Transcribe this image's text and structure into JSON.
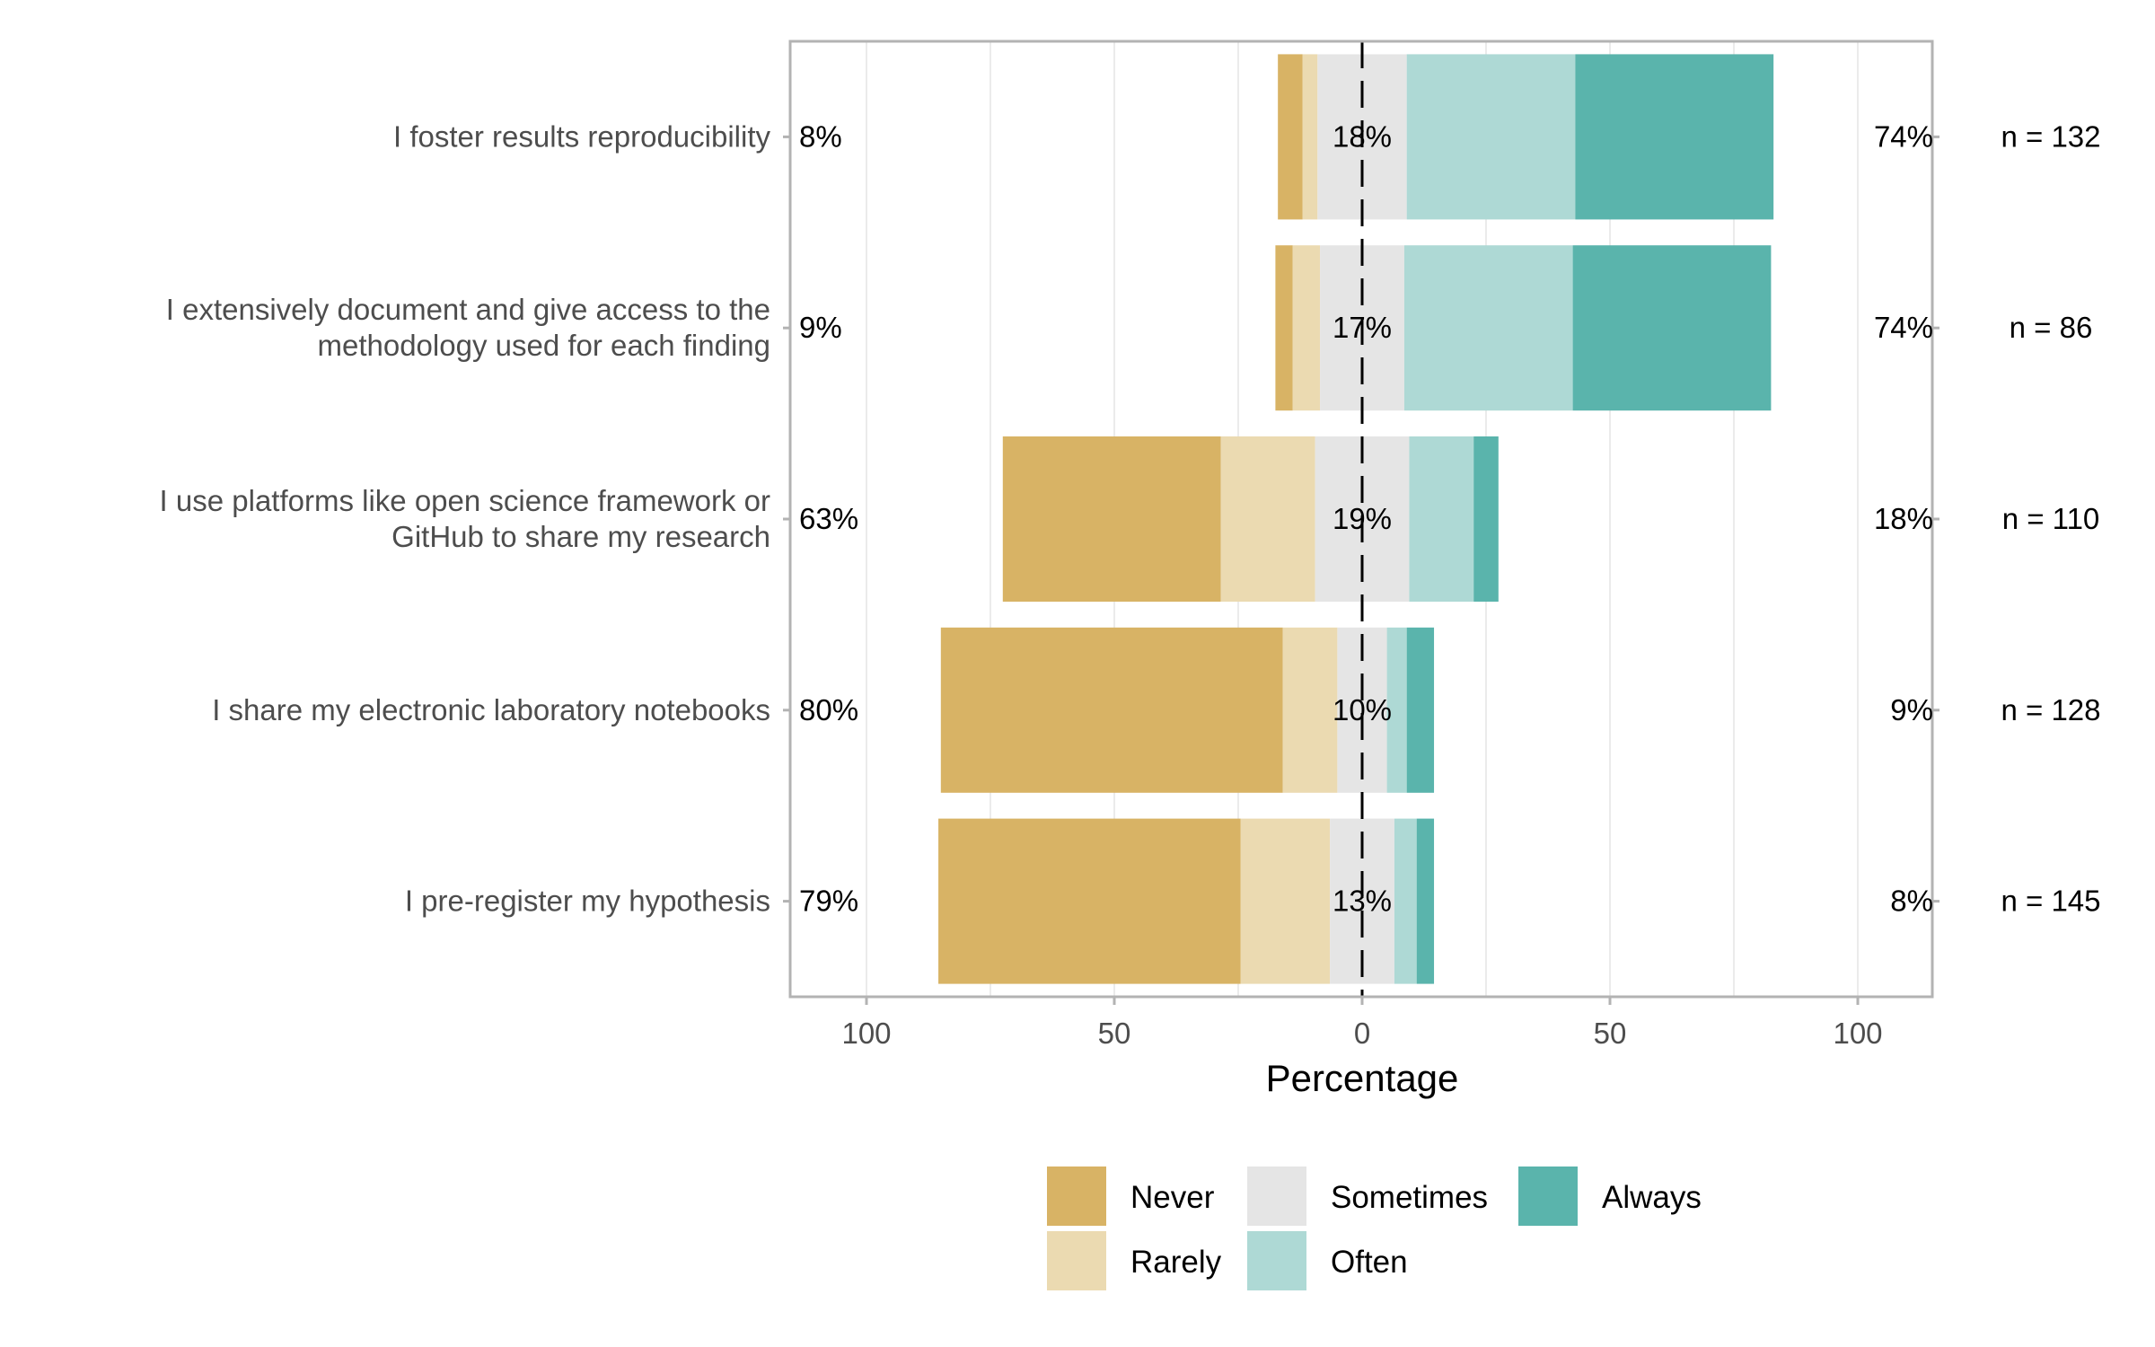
{
  "chart_data": {
    "type": "bar",
    "layout": "diverging-stacked-horizontal",
    "xlabel": "Percentage",
    "xlim": [
      -100,
      100
    ],
    "xticks": [
      {
        "value": -100,
        "label": "100"
      },
      {
        "value": -50,
        "label": "50"
      },
      {
        "value": 0,
        "label": "0"
      },
      {
        "value": 50,
        "label": "50"
      },
      {
        "value": 100,
        "label": "100"
      }
    ],
    "series": [
      {
        "name": "Never",
        "color": "#d8b365"
      },
      {
        "name": "Rarely",
        "color": "#ebdab1"
      },
      {
        "name": "Sometimes",
        "color": "#e5e5e5"
      },
      {
        "name": "Often",
        "color": "#aed9d5"
      },
      {
        "name": "Always",
        "color": "#5ab4ac"
      }
    ],
    "categories": [
      {
        "label": [
          "I foster results reproducibility"
        ],
        "values": [
          5,
          3,
          18,
          34,
          40
        ],
        "left_label": "8%",
        "center_label": "18%",
        "right_label": "74%",
        "n_label": "n = 132"
      },
      {
        "label": [
          "I extensively document and give access to the",
          "methodology used for each finding"
        ],
        "values": [
          3.5,
          5.5,
          17,
          34,
          40
        ],
        "left_label": "9%",
        "center_label": "17%",
        "right_label": "74%",
        "n_label": "n = 86"
      },
      {
        "label": [
          "I use platforms like open science framework or",
          "GitHub to share my research"
        ],
        "values": [
          44,
          19,
          19,
          13,
          5
        ],
        "left_label": "63%",
        "center_label": "19%",
        "right_label": "18%",
        "n_label": "n = 110"
      },
      {
        "label": [
          "I share my electronic laboratory notebooks"
        ],
        "values": [
          69,
          11,
          10,
          4,
          5.5
        ],
        "left_label": "80%",
        "center_label": "10%",
        "right_label": "9%",
        "n_label": "n = 128"
      },
      {
        "label": [
          "I pre-register my hypothesis"
        ],
        "values": [
          61,
          18,
          13,
          4.5,
          3.5
        ],
        "left_label": "79%",
        "center_label": "13%",
        "right_label": "8%",
        "n_label": "n = 145"
      }
    ],
    "legend": {
      "position": "bottom",
      "columns": 3
    }
  }
}
